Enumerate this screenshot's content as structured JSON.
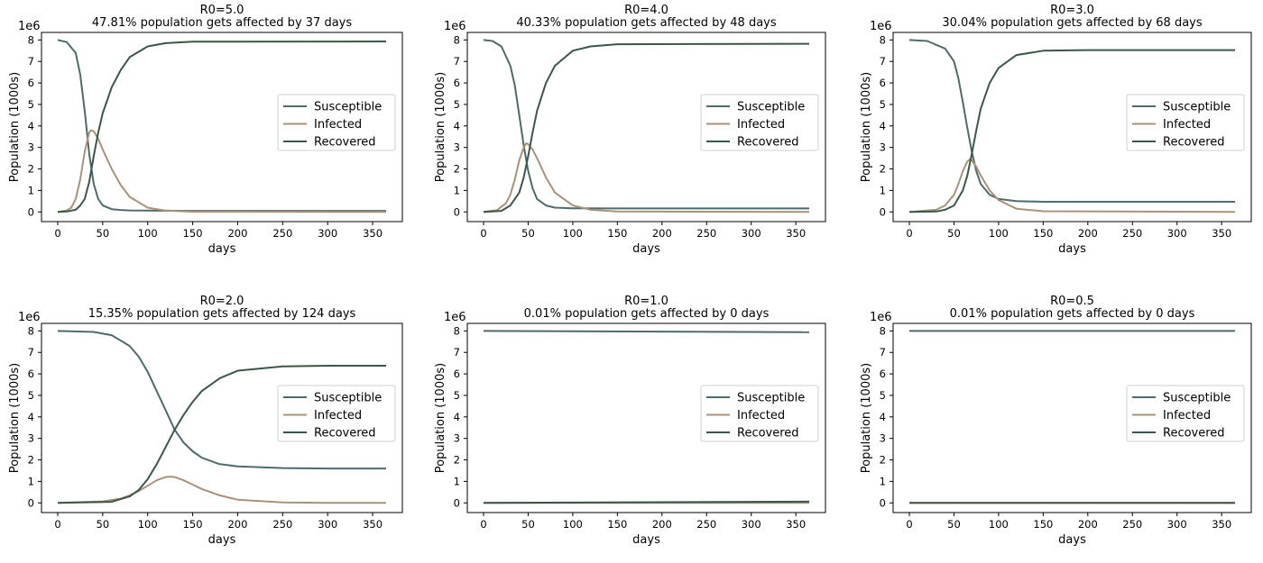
{
  "chart_data": [
    {
      "type": "line",
      "title": "R0=5.0",
      "subtitle": "47.81% population gets affected by 37 days",
      "xlabel": "days",
      "ylabel": "Population (1000s)",
      "offset_text": "1e6",
      "xlim": [
        0,
        365
      ],
      "ylim": [
        0,
        8
      ],
      "xticks": [
        "0",
        "50",
        "100",
        "150",
        "200",
        "250",
        "300",
        "350"
      ],
      "yticks": [
        "0",
        "1",
        "2",
        "3",
        "4",
        "5",
        "6",
        "7",
        "8"
      ],
      "legend_position": "center-right",
      "series": [
        {
          "name": "Susceptible",
          "color": "#4f6a6a",
          "x": [
            0,
            10,
            20,
            25,
            30,
            35,
            40,
            45,
            50,
            60,
            70,
            80,
            100,
            150,
            365
          ],
          "values": [
            8.0,
            7.9,
            7.4,
            6.4,
            4.7,
            2.7,
            1.3,
            0.6,
            0.3,
            0.13,
            0.09,
            0.07,
            0.06,
            0.05,
            0.05
          ]
        },
        {
          "name": "Infected",
          "color": "#a8927a",
          "x": [
            0,
            10,
            15,
            20,
            25,
            30,
            35,
            37,
            40,
            45,
            50,
            60,
            70,
            80,
            100,
            120,
            150,
            365
          ],
          "values": [
            0.0,
            0.07,
            0.2,
            0.6,
            1.5,
            2.8,
            3.7,
            3.8,
            3.75,
            3.4,
            2.9,
            2.0,
            1.25,
            0.7,
            0.2,
            0.06,
            0.01,
            0.0
          ]
        },
        {
          "name": "Recovered",
          "color": "#3c5648",
          "x": [
            0,
            10,
            20,
            25,
            30,
            35,
            40,
            45,
            50,
            60,
            70,
            80,
            100,
            120,
            150,
            365
          ],
          "values": [
            0.0,
            0.02,
            0.1,
            0.3,
            0.6,
            1.4,
            2.6,
            3.7,
            4.6,
            5.8,
            6.6,
            7.2,
            7.7,
            7.85,
            7.92,
            7.93
          ]
        }
      ]
    },
    {
      "type": "line",
      "title": "R0=4.0",
      "subtitle": "40.33% population gets affected by 48 days",
      "xlabel": "days",
      "ylabel": "Population (1000s)",
      "offset_text": "1e6",
      "xlim": [
        0,
        365
      ],
      "ylim": [
        0,
        8
      ],
      "xticks": [
        "0",
        "50",
        "100",
        "150",
        "200",
        "250",
        "300",
        "350"
      ],
      "yticks": [
        "0",
        "1",
        "2",
        "3",
        "4",
        "5",
        "6",
        "7",
        "8"
      ],
      "legend_position": "center-right",
      "series": [
        {
          "name": "Susceptible",
          "color": "#4f6a6a",
          "x": [
            0,
            10,
            20,
            30,
            35,
            40,
            45,
            50,
            55,
            60,
            70,
            80,
            100,
            150,
            365
          ],
          "values": [
            8.0,
            7.95,
            7.7,
            6.8,
            5.9,
            4.5,
            3.1,
            1.9,
            1.1,
            0.6,
            0.3,
            0.2,
            0.17,
            0.16,
            0.16
          ]
        },
        {
          "name": "Infected",
          "color": "#a8927a",
          "x": [
            0,
            15,
            25,
            30,
            35,
            40,
            45,
            48,
            50,
            55,
            60,
            70,
            80,
            100,
            120,
            150,
            365
          ],
          "values": [
            0.0,
            0.08,
            0.4,
            0.8,
            1.5,
            2.4,
            3.0,
            3.2,
            3.15,
            2.9,
            2.5,
            1.6,
            0.9,
            0.3,
            0.1,
            0.02,
            0.0
          ]
        },
        {
          "name": "Recovered",
          "color": "#3c5648",
          "x": [
            0,
            20,
            30,
            40,
            45,
            50,
            55,
            60,
            70,
            80,
            100,
            120,
            150,
            365
          ],
          "values": [
            0.0,
            0.05,
            0.3,
            0.9,
            1.6,
            2.6,
            3.7,
            4.7,
            6.0,
            6.8,
            7.5,
            7.7,
            7.8,
            7.82
          ]
        }
      ]
    },
    {
      "type": "line",
      "title": "R0=3.0",
      "subtitle": "30.04% population gets affected by 68 days",
      "xlabel": "days",
      "ylabel": "Population (1000s)",
      "offset_text": "1e6",
      "xlim": [
        0,
        365
      ],
      "ylim": [
        0,
        8
      ],
      "xticks": [
        "0",
        "50",
        "100",
        "150",
        "200",
        "250",
        "300",
        "350"
      ],
      "yticks": [
        "0",
        "1",
        "2",
        "3",
        "4",
        "5",
        "6",
        "7",
        "8"
      ],
      "legend_position": "center-right",
      "series": [
        {
          "name": "Susceptible",
          "color": "#4f6a6a",
          "x": [
            0,
            20,
            40,
            50,
            55,
            60,
            65,
            70,
            75,
            80,
            90,
            100,
            120,
            150,
            365
          ],
          "values": [
            8.0,
            7.95,
            7.6,
            7.0,
            6.2,
            5.1,
            3.9,
            2.8,
            1.9,
            1.3,
            0.8,
            0.6,
            0.5,
            0.47,
            0.47
          ]
        },
        {
          "name": "Infected",
          "color": "#a8927a",
          "x": [
            0,
            30,
            40,
            50,
            55,
            60,
            65,
            68,
            70,
            75,
            80,
            90,
            100,
            120,
            150,
            365
          ],
          "values": [
            0.0,
            0.1,
            0.3,
            0.8,
            1.3,
            1.9,
            2.35,
            2.45,
            2.4,
            2.1,
            1.7,
            1.0,
            0.55,
            0.15,
            0.03,
            0.0
          ]
        },
        {
          "name": "Recovered",
          "color": "#3c5648",
          "x": [
            0,
            30,
            40,
            50,
            60,
            65,
            70,
            75,
            80,
            90,
            100,
            120,
            150,
            200,
            365
          ],
          "values": [
            0.0,
            0.02,
            0.1,
            0.3,
            1.0,
            1.7,
            2.7,
            3.8,
            4.8,
            6.0,
            6.7,
            7.3,
            7.5,
            7.53,
            7.53
          ]
        }
      ]
    },
    {
      "type": "line",
      "title": "R0=2.0",
      "subtitle": "15.35% population gets affected by 124 days",
      "xlabel": "days",
      "ylabel": "Population (1000s)",
      "offset_text": "1e6",
      "xlim": [
        0,
        365
      ],
      "ylim": [
        0,
        8
      ],
      "xticks": [
        "0",
        "50",
        "100",
        "150",
        "200",
        "250",
        "300",
        "350"
      ],
      "yticks": [
        "0",
        "1",
        "2",
        "3",
        "4",
        "5",
        "6",
        "7",
        "8"
      ],
      "legend_position": "center-right",
      "series": [
        {
          "name": "Susceptible",
          "color": "#4f6a6a",
          "x": [
            0,
            40,
            60,
            80,
            90,
            100,
            110,
            120,
            130,
            140,
            150,
            160,
            180,
            200,
            250,
            300,
            365
          ],
          "values": [
            8.0,
            7.95,
            7.8,
            7.3,
            6.8,
            6.1,
            5.2,
            4.3,
            3.4,
            2.8,
            2.4,
            2.1,
            1.8,
            1.7,
            1.62,
            1.6,
            1.6
          ]
        },
        {
          "name": "Infected",
          "color": "#a8927a",
          "x": [
            0,
            50,
            70,
            80,
            90,
            100,
            110,
            120,
            124,
            130,
            140,
            150,
            160,
            180,
            200,
            250,
            300,
            365
          ],
          "values": [
            0.0,
            0.07,
            0.2,
            0.35,
            0.55,
            0.8,
            1.05,
            1.2,
            1.22,
            1.2,
            1.05,
            0.85,
            0.65,
            0.35,
            0.15,
            0.02,
            0.0,
            0.0
          ]
        },
        {
          "name": "Recovered",
          "color": "#3c5648",
          "x": [
            0,
            60,
            80,
            90,
            100,
            110,
            120,
            130,
            140,
            150,
            160,
            180,
            200,
            250,
            300,
            365
          ],
          "values": [
            0.0,
            0.05,
            0.3,
            0.6,
            1.1,
            1.8,
            2.6,
            3.4,
            4.1,
            4.7,
            5.2,
            5.8,
            6.15,
            6.35,
            6.38,
            6.38
          ]
        }
      ]
    },
    {
      "type": "line",
      "title": "R0=1.0",
      "subtitle": "0.01% population gets affected by 0 days",
      "xlabel": "days",
      "ylabel": "Population (1000s)",
      "offset_text": "1e6",
      "xlim": [
        0,
        365
      ],
      "ylim": [
        0,
        8
      ],
      "xticks": [
        "0",
        "50",
        "100",
        "150",
        "200",
        "250",
        "300",
        "350"
      ],
      "yticks": [
        "0",
        "1",
        "2",
        "3",
        "4",
        "5",
        "6",
        "7",
        "8"
      ],
      "legend_position": "center-right",
      "series": [
        {
          "name": "Susceptible",
          "color": "#4f6a6a",
          "x": [
            0,
            365
          ],
          "values": [
            8.0,
            7.94
          ]
        },
        {
          "name": "Infected",
          "color": "#a8927a",
          "x": [
            0,
            365
          ],
          "values": [
            0.0,
            0.0
          ]
        },
        {
          "name": "Recovered",
          "color": "#3c5648",
          "x": [
            0,
            365
          ],
          "values": [
            0.0,
            0.06
          ]
        }
      ]
    },
    {
      "type": "line",
      "title": "R0=0.5",
      "subtitle": "0.01% population gets affected by 0 days",
      "xlabel": "days",
      "ylabel": "Population (1000s)",
      "offset_text": "1e6",
      "xlim": [
        0,
        365
      ],
      "ylim": [
        0,
        8
      ],
      "xticks": [
        "0",
        "50",
        "100",
        "150",
        "200",
        "250",
        "300",
        "350"
      ],
      "yticks": [
        "0",
        "1",
        "2",
        "3",
        "4",
        "5",
        "6",
        "7",
        "8"
      ],
      "legend_position": "center-right",
      "series": [
        {
          "name": "Susceptible",
          "color": "#4f6a6a",
          "x": [
            0,
            365
          ],
          "values": [
            8.0,
            8.0
          ]
        },
        {
          "name": "Infected",
          "color": "#a8927a",
          "x": [
            0,
            365
          ],
          "values": [
            0.0,
            0.0
          ]
        },
        {
          "name": "Recovered",
          "color": "#3c5648",
          "x": [
            0,
            365
          ],
          "values": [
            0.0,
            0.0
          ]
        }
      ]
    }
  ]
}
